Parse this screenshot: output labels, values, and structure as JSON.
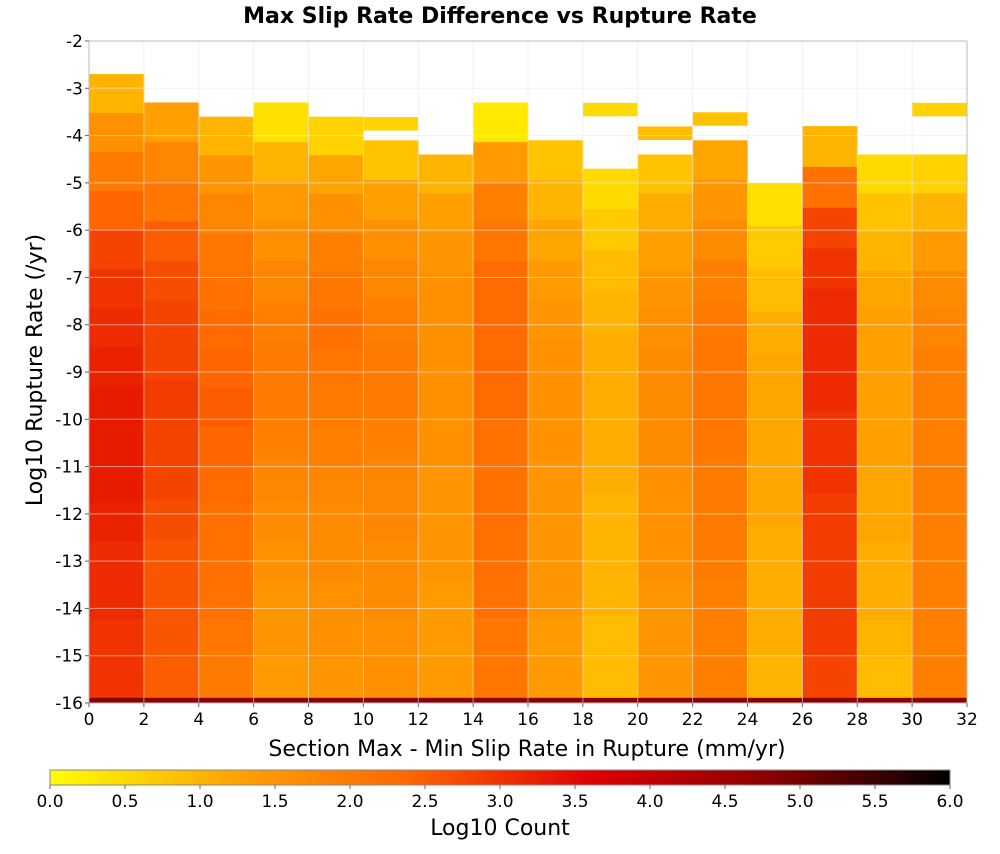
{
  "chart_data": {
    "type": "heatmap",
    "title": "Max Slip Rate Difference vs Rupture Rate",
    "xlabel": "Section Max - Min Slip Rate in Rupture (mm/yr)",
    "ylabel": "Log10 Rupture Rate (/yr)",
    "xlim": [
      0,
      32
    ],
    "ylim": [
      -16,
      -2
    ],
    "x_ticks": [
      "0",
      "2",
      "4",
      "6",
      "8",
      "10",
      "12",
      "14",
      "16",
      "18",
      "20",
      "22",
      "24",
      "26",
      "28",
      "30",
      "32"
    ],
    "y_ticks": [
      "-2",
      "-3",
      "-4",
      "-5",
      "-6",
      "-7",
      "-8",
      "-9",
      "-10",
      "-11",
      "-12",
      "-13",
      "-14",
      "-15",
      "-16"
    ],
    "x_bin_width": 2,
    "y_bin_width": 0.2857,
    "grid": true,
    "colorbar": {
      "label": "Log10 Count",
      "range": [
        0,
        6
      ],
      "ticks": [
        "0.0",
        "0.5",
        "1.0",
        "1.5",
        "2.0",
        "2.5",
        "3.0",
        "3.5",
        "4.0",
        "4.5",
        "5.0",
        "5.5",
        "6.0"
      ],
      "colors": [
        "#ffff00",
        "#ffa500",
        "#ff6600",
        "#e00000",
        "#8b0000",
        "#000000"
      ]
    },
    "bottom_row_log10_count": 4.8,
    "columns": [
      {
        "x": 1,
        "top": -2.7,
        "values": [
          1.0,
          1.6,
          2.0,
          2.4,
          2.8,
          3.0,
          3.1,
          3.2,
          3.3,
          3.3,
          3.3,
          3.2,
          3.1,
          3.1,
          3.0,
          3.0
        ]
      },
      {
        "x": 3,
        "top": -3.3,
        "values": [
          1.3,
          1.8,
          2.1,
          2.5,
          2.7,
          2.8,
          2.8,
          2.9,
          2.8,
          2.8,
          2.7,
          2.6,
          2.6,
          2.6,
          2.5
        ]
      },
      {
        "x": 5,
        "top": -3.6,
        "values": [
          1.0,
          1.5,
          1.8,
          2.1,
          2.2,
          2.3,
          2.4,
          2.5,
          2.4,
          2.3,
          2.2,
          2.2,
          2.2,
          2.1,
          2.0
        ]
      },
      {
        "x": 7,
        "top": -3.3,
        "values": [
          0.4,
          1.0,
          1.4,
          1.6,
          1.8,
          1.9,
          2.0,
          2.0,
          1.9,
          1.8,
          1.7,
          1.6,
          1.5,
          1.5,
          1.4
        ]
      },
      {
        "x": 9,
        "top": -3.6,
        "values": [
          0.6,
          1.2,
          1.6,
          1.9,
          2.1,
          2.2,
          2.1,
          2.0,
          1.9,
          1.8,
          1.7,
          1.7,
          1.6,
          1.6,
          1.5
        ]
      },
      {
        "x": 11,
        "top": -4.1,
        "values": [
          0.8,
          1.3,
          1.6,
          1.8,
          1.9,
          2.0,
          2.0,
          1.9,
          1.8,
          1.8,
          1.7,
          1.7,
          1.6,
          1.6
        ]
      },
      {
        "x": 13,
        "top": -4.4,
        "values": [
          1.0,
          1.3,
          1.5,
          1.6,
          1.6,
          1.6,
          1.6,
          1.6,
          1.5,
          1.5,
          1.5,
          1.4,
          1.4,
          1.4
        ]
      },
      {
        "x": 15,
        "top": -3.3,
        "values": [
          0.3,
          1.4,
          1.9,
          2.1,
          2.3,
          2.3,
          2.3,
          2.3,
          2.2,
          2.2,
          2.2,
          2.2,
          2.2,
          2.1,
          2.1
        ]
      },
      {
        "x": 17,
        "top": -4.1,
        "values": [
          0.8,
          1.0,
          1.2,
          1.4,
          1.5,
          1.6,
          1.6,
          1.6,
          1.5,
          1.5,
          1.5,
          1.5,
          1.4,
          1.4
        ]
      },
      {
        "x": 19,
        "top": -4.7,
        "values": [
          0.5,
          0.7,
          0.9,
          1.0,
          1.1,
          1.1,
          1.1,
          1.1,
          1.0,
          1.0,
          1.0,
          0.9,
          0.9
        ]
      },
      {
        "x": 21,
        "top": -4.4,
        "values": [
          0.8,
          1.1,
          1.3,
          1.5,
          1.6,
          1.7,
          1.7,
          1.7,
          1.6,
          1.6,
          1.6,
          1.5,
          1.5,
          1.5
        ]
      },
      {
        "x": 23,
        "top": -4.1,
        "values": [
          1.2,
          1.5,
          1.7,
          1.9,
          2.0,
          2.1,
          2.1,
          2.1,
          2.0,
          2.0,
          2.0,
          1.9,
          1.9,
          1.9
        ]
      },
      {
        "x": 25,
        "top": -5.0,
        "values": [
          0.4,
          0.7,
          0.9,
          1.1,
          1.2,
          1.2,
          1.2,
          1.2,
          1.1,
          1.1,
          1.1,
          1.0
        ]
      },
      {
        "x": 27,
        "top": -3.8,
        "values": [
          1.0,
          2.2,
          2.8,
          3.0,
          3.1,
          3.1,
          3.1,
          3.0,
          3.0,
          2.9,
          2.9,
          2.9,
          2.9,
          2.8
        ]
      },
      {
        "x": 29,
        "top": -4.4,
        "values": [
          0.5,
          0.8,
          1.0,
          1.2,
          1.3,
          1.3,
          1.3,
          1.3,
          1.2,
          1.2,
          1.1,
          1.1,
          1.0,
          0.9
        ]
      },
      {
        "x": 31,
        "top": -4.4,
        "values": [
          0.6,
          1.0,
          1.4,
          1.7,
          1.8,
          1.9,
          1.9,
          1.9,
          1.9,
          1.9,
          1.9,
          1.9,
          1.9,
          1.9
        ]
      }
    ],
    "extra_cells": [
      {
        "x": 11,
        "y_center": -3.75,
        "value": 0.6
      },
      {
        "x": 19,
        "y_center": -3.45,
        "value": 0.5
      },
      {
        "x": 21,
        "y_center": -3.95,
        "value": 0.9
      },
      {
        "x": 23,
        "y_center": -3.65,
        "value": 0.8
      },
      {
        "x": 31,
        "y_center": -3.45,
        "value": 0.6
      }
    ]
  }
}
